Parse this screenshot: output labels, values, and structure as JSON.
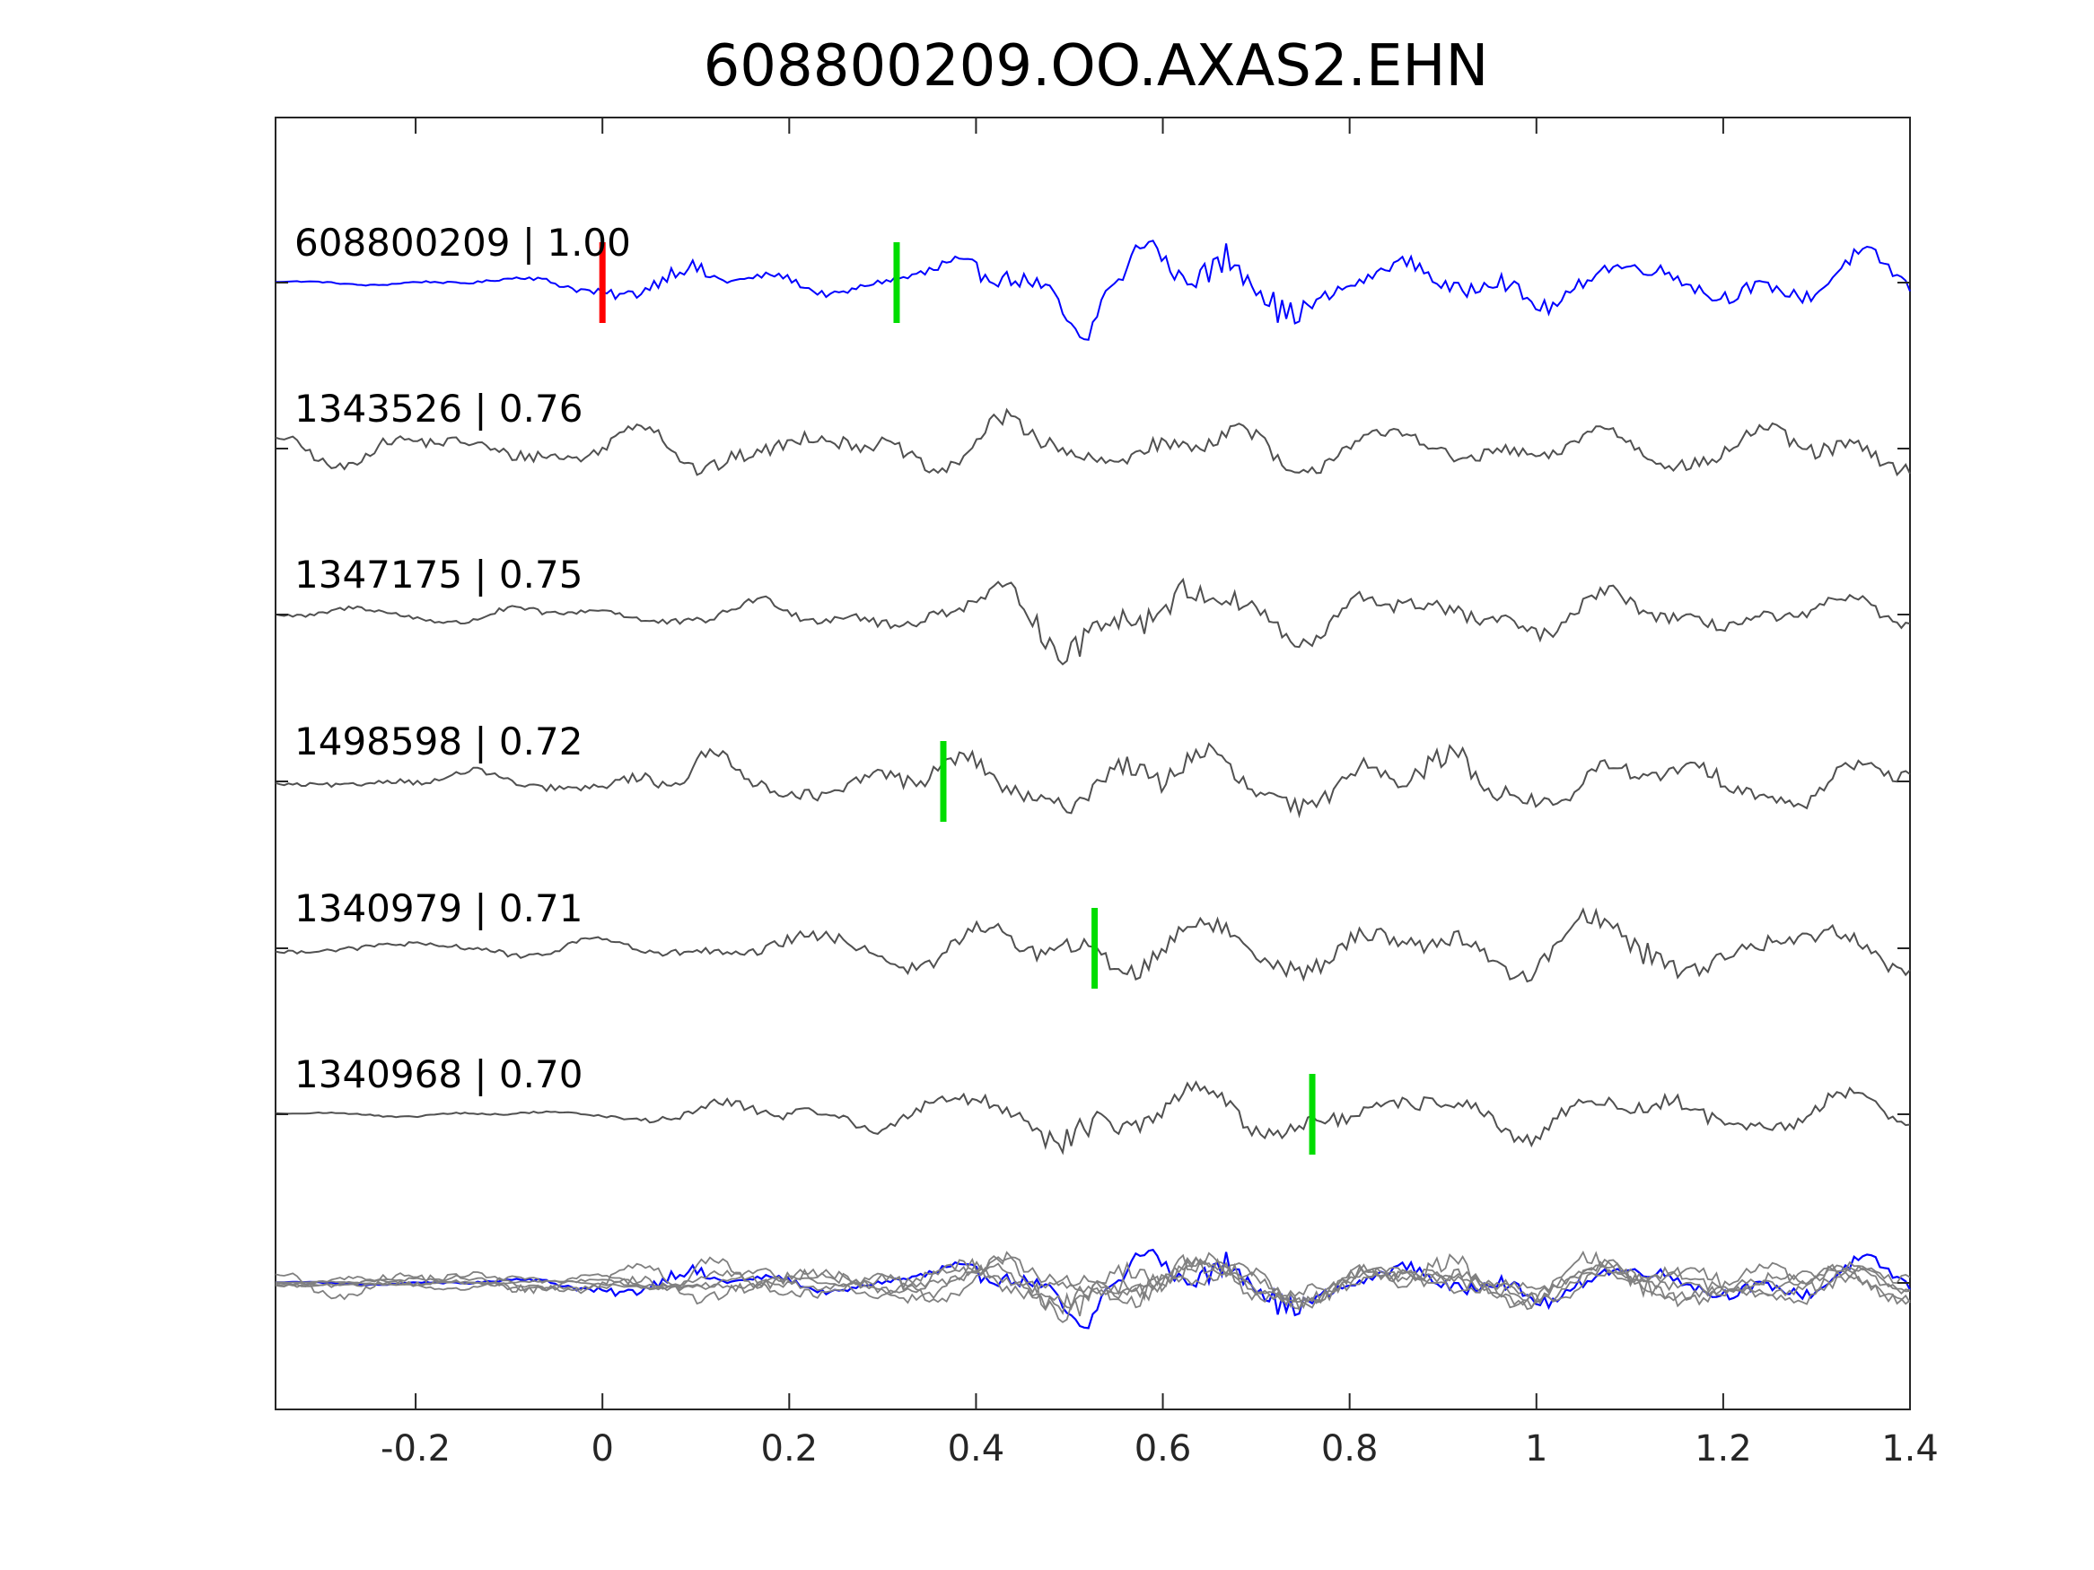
{
  "colors": {
    "reference": "#0000ff",
    "trace": "#505050",
    "overlay": "#808080",
    "pick_red": "#ff0000",
    "pick_green": "#00dd00",
    "axis": "#262626"
  },
  "chart_data": {
    "type": "line",
    "title": "608800209.OO.AXAS2.EHN",
    "xlabel": "",
    "ylabel": "",
    "xlim": [
      -0.35,
      1.4
    ],
    "xticks": [
      -0.2,
      0,
      0.2,
      0.4,
      0.6,
      0.8,
      1,
      1.2,
      1.4
    ],
    "xtick_labels": [
      "-0.2",
      "0",
      "0.2",
      "0.4",
      "0.6",
      "0.8",
      "1",
      "1.2",
      "1.4"
    ],
    "grid": false,
    "series": [
      {
        "name": "608800209 | 1.00",
        "label": "608800209 | 1.00",
        "role": "reference",
        "x": [
          -0.35,
          -0.2,
          -0.1,
          0,
          0.1,
          0.15,
          0.2,
          0.3,
          0.37,
          0.43,
          0.46,
          0.5,
          0.515,
          0.545,
          0.58,
          0.62,
          0.67,
          0.7,
          0.73,
          0.8,
          0.93,
          1.0,
          1.1,
          1.15,
          1.2,
          1.25,
          1.3,
          1.4
        ],
        "y": [
          0.05,
          0.1,
          0.15,
          0.5,
          1.0,
          0.3,
          0.4,
          0.3,
          1.2,
          1.0,
          0.8,
          1.6,
          2.1,
          0.2,
          1.8,
          0.7,
          2.3,
          1.5,
          1.7,
          0.4,
          1.1,
          0.9,
          0.7,
          0.8,
          1.0,
          0.6,
          0.8,
          0.9
        ],
        "picks": [
          {
            "x": 0.0,
            "color": "red"
          },
          {
            "x": 0.315,
            "color": "green"
          }
        ]
      },
      {
        "name": "1343526 | 0.76",
        "label": "1343526 | 0.76",
        "x": [
          -0.35,
          -0.2,
          -0.1,
          0,
          0.1,
          0.2,
          0.3,
          0.4,
          0.475,
          0.5,
          0.6,
          0.7,
          0.8,
          0.9,
          1.0,
          1.1,
          1.2,
          1.3,
          1.4
        ],
        "y": [
          0.5,
          0.6,
          0.7,
          0.6,
          0.9,
          0.8,
          0.8,
          0.7,
          1.6,
          0.7,
          0.8,
          0.9,
          0.8,
          0.7,
          0.6,
          0.7,
          0.8,
          0.9,
          0.8
        ],
        "picks": []
      },
      {
        "name": "1347175 | 0.75",
        "label": "1347175 | 0.75",
        "x": [
          -0.35,
          -0.2,
          -0.1,
          0,
          0.1,
          0.2,
          0.3,
          0.4,
          0.52,
          0.6,
          0.7,
          0.8,
          0.9,
          1.0,
          1.1,
          1.2,
          1.3,
          1.4
        ],
        "y": [
          0.2,
          0.3,
          0.3,
          0.3,
          0.4,
          0.5,
          0.6,
          0.7,
          1.6,
          1.7,
          0.9,
          0.9,
          0.9,
          0.8,
          0.7,
          0.7,
          0.6,
          0.5
        ],
        "picks": []
      },
      {
        "name": "1498598 | 0.72",
        "label": "1498598 | 0.72",
        "x": [
          -0.35,
          -0.2,
          -0.1,
          0,
          0.1,
          0.2,
          0.3,
          0.4,
          0.5,
          0.6,
          0.7,
          0.8,
          0.9,
          0.93,
          1.0,
          1.1,
          1.2,
          1.3,
          1.4
        ],
        "y": [
          0.2,
          0.3,
          0.35,
          0.4,
          1.0,
          0.6,
          0.8,
          0.9,
          1.0,
          1.3,
          1.1,
          0.9,
          1.2,
          1.5,
          0.8,
          0.8,
          0.9,
          0.8,
          0.7
        ],
        "picks": [
          {
            "x": 0.365,
            "color": "green"
          }
        ]
      },
      {
        "name": "1340979 | 0.71",
        "label": "1340979 | 0.71",
        "x": [
          -0.35,
          -0.2,
          -0.1,
          0,
          0.1,
          0.2,
          0.3,
          0.4,
          0.5,
          0.6,
          0.7,
          0.8,
          0.9,
          1.0,
          1.15,
          1.2,
          1.3,
          1.4
        ],
        "y": [
          0.2,
          0.3,
          0.3,
          0.3,
          0.5,
          0.6,
          0.7,
          0.8,
          0.9,
          1.0,
          1.0,
          1.0,
          0.9,
          0.9,
          1.6,
          0.8,
          1.0,
          0.6
        ],
        "picks": [
          {
            "x": 0.527,
            "color": "green"
          }
        ]
      },
      {
        "name": "1340968 | 0.70",
        "label": "1340968 | 0.70",
        "x": [
          -0.35,
          -0.2,
          -0.1,
          0,
          0.1,
          0.2,
          0.3,
          0.4,
          0.51,
          0.6,
          0.7,
          0.8,
          0.9,
          1.0,
          1.15,
          1.2,
          1.3,
          1.4
        ],
        "y": [
          0.05,
          0.1,
          0.1,
          0.1,
          0.5,
          0.5,
          0.5,
          0.8,
          1.8,
          0.8,
          0.9,
          0.8,
          0.8,
          0.8,
          0.9,
          0.7,
          0.8,
          0.6
        ],
        "picks": [
          {
            "x": 0.76,
            "color": "green"
          }
        ]
      }
    ],
    "overlay_panel": "all traces superimposed at the bottom"
  }
}
